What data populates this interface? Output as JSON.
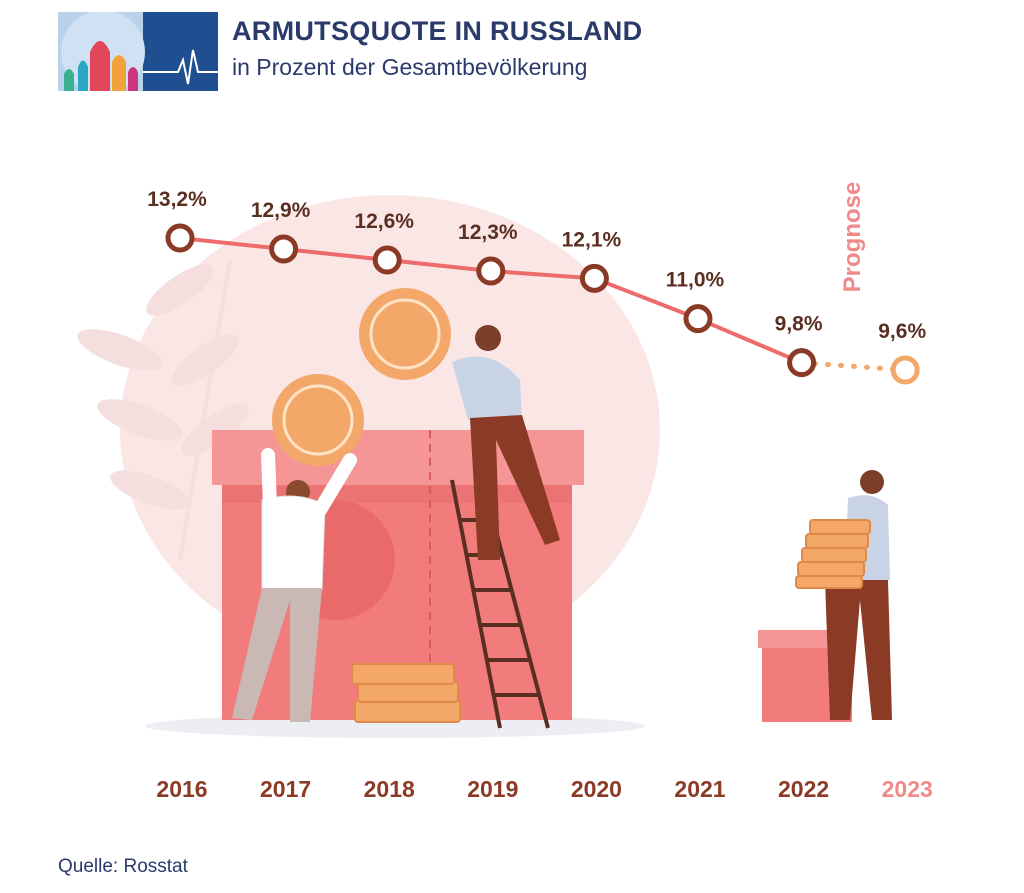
{
  "header": {
    "title": "ARMUTSQUOTE IN RUSSLAND",
    "subtitle": "in Prozent der Gesamtbevölkerung"
  },
  "forecast_label": "Prognose",
  "source": "Quelle: Rosstat",
  "colors": {
    "line": "#ee6b6b",
    "marker_stroke": "#8b3a25",
    "forecast_marker": "#f3a86a",
    "year_text": "#8b3a25",
    "forecast_year_text": "#f08a8a",
    "title_text": "#2a3a6b"
  },
  "chart_data": {
    "type": "line",
    "x": [
      "2016",
      "2017",
      "2018",
      "2019",
      "2020",
      "2021",
      "2022",
      "2023"
    ],
    "values": [
      13.2,
      12.9,
      12.6,
      12.3,
      12.1,
      11.0,
      9.8,
      9.6
    ],
    "data_labels": [
      "13,2%",
      "12,9%",
      "12,6%",
      "12,3%",
      "12,1%",
      "11,0%",
      "9,8%",
      "9,6%"
    ],
    "forecast_from": "2023",
    "ylim": [
      9.6,
      13.2
    ],
    "grid": false,
    "legend": "none"
  }
}
